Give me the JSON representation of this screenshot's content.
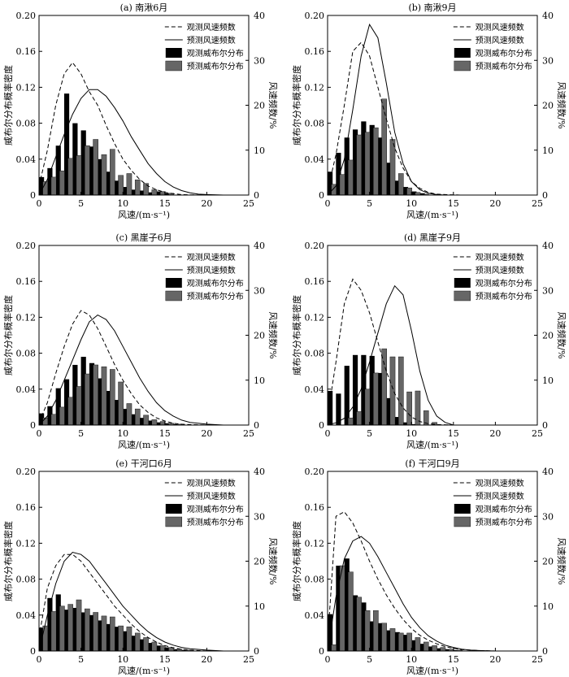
{
  "figure": {
    "left_axis_label": "威布尔分布概率密度",
    "right_axis_label": "风速频数/%",
    "x_axis_label": "风速/(m·s⁻¹)",
    "legend_labels": [
      "观测风速频数",
      "预测风速频数",
      "观测威布尔分布",
      "预测威布尔分布"
    ],
    "colors": {
      "observed_bar": "#000000",
      "predicted_bar": "#666666",
      "line": "#000000"
    }
  },
  "chart_data": [
    {
      "type": "bar",
      "title": "(a) 南湫6月",
      "xlim": [
        0,
        25
      ],
      "ylim": [
        0,
        0.2
      ],
      "y2lim": [
        0,
        40
      ],
      "x_ticks": [
        0,
        5,
        10,
        15,
        20,
        25
      ],
      "y_ticks": [
        0,
        0.04,
        0.08,
        0.12,
        0.16,
        0.2
      ],
      "y2_ticks": [
        0,
        10,
        20,
        30,
        40
      ],
      "legend": "top-right",
      "bars_x": [
        0,
        1,
        2,
        3,
        4,
        5,
        6,
        7,
        8,
        9,
        10,
        11,
        12,
        13,
        14,
        15
      ],
      "observed_bars": [
        0.02,
        0.03,
        0.055,
        0.113,
        0.08,
        0.072,
        0.054,
        0.04,
        0.026,
        0.016,
        0.009,
        0.006,
        0.005,
        0.003,
        0.004,
        0.002
      ],
      "predicted_bars": [
        0.015,
        0.02,
        0.027,
        0.041,
        0.044,
        0.055,
        0.062,
        0.045,
        0.051,
        0.022,
        0.024,
        0.017,
        0.013,
        0.006,
        0.004,
        0.002
      ],
      "observed_freq": {
        "x": [
          0,
          1,
          2,
          3,
          4,
          5,
          6,
          7,
          8,
          9,
          10,
          11,
          12,
          13,
          14,
          15,
          16,
          17,
          18,
          20
        ],
        "y": [
          2,
          10,
          20,
          27,
          29.5,
          27,
          23,
          20,
          15.5,
          11.5,
          8,
          5.5,
          3.5,
          2,
          1.2,
          0.6,
          0.3,
          0.1,
          0.05,
          0
        ]
      },
      "predicted_freq": {
        "x": [
          0,
          1,
          2,
          3,
          4,
          5,
          6,
          7,
          8,
          9,
          10,
          11,
          12,
          13,
          14,
          15,
          16,
          17,
          18,
          19,
          20,
          22
        ],
        "y": [
          0,
          3.5,
          8.5,
          13.5,
          18,
          21.5,
          23.5,
          23.5,
          22,
          19.5,
          16.5,
          13,
          10,
          7,
          4.8,
          3,
          1.8,
          1,
          0.5,
          0.2,
          0.1,
          0
        ]
      }
    },
    {
      "type": "bar",
      "title": "(b) 南湫9月",
      "xlim": [
        0,
        25
      ],
      "ylim": [
        0,
        0.2
      ],
      "y2lim": [
        0,
        40
      ],
      "x_ticks": [
        0,
        5,
        10,
        15,
        20,
        25
      ],
      "y_ticks": [
        0,
        0.04,
        0.08,
        0.12,
        0.16,
        0.2
      ],
      "y2_ticks": [
        0,
        10,
        20,
        30,
        40
      ],
      "legend": "top-right",
      "bars_x": [
        0,
        1,
        2,
        3,
        4,
        5,
        6,
        7,
        8,
        9,
        10,
        11
      ],
      "observed_bars": [
        0.026,
        0.047,
        0.064,
        0.073,
        0.082,
        0.078,
        0.064,
        0.036,
        0.016,
        0.009,
        0.004,
        0.002
      ],
      "predicted_bars": [
        0.012,
        0.023,
        0.039,
        0.067,
        0.07,
        0.075,
        0.107,
        0.062,
        0.024,
        0.008,
        0.003,
        0.001
      ],
      "observed_freq": {
        "x": [
          0,
          1,
          2,
          3,
          4,
          5,
          6,
          7,
          8,
          9,
          10,
          11,
          12,
          13,
          14,
          16
        ],
        "y": [
          1,
          9,
          20,
          32,
          34,
          31,
          24,
          17,
          10.5,
          6,
          3,
          1.5,
          0.6,
          0.2,
          0.1,
          0
        ]
      },
      "predicted_freq": {
        "x": [
          0,
          1,
          2,
          3,
          4,
          5,
          6,
          7,
          8,
          9,
          10,
          11,
          12,
          13,
          14
        ],
        "y": [
          0,
          2,
          8,
          19,
          31,
          38,
          35,
          25,
          14,
          7,
          3,
          1.2,
          0.4,
          0.1,
          0
        ]
      }
    },
    {
      "type": "bar",
      "title": "(c) 黑崖子6月",
      "xlim": [
        0,
        25
      ],
      "ylim": [
        0,
        0.2
      ],
      "y2lim": [
        0,
        40
      ],
      "x_ticks": [
        0,
        5,
        10,
        15,
        20,
        25
      ],
      "y_ticks": [
        0,
        0.04,
        0.08,
        0.12,
        0.16,
        0.2
      ],
      "y2_ticks": [
        0,
        10,
        20,
        30,
        40
      ],
      "legend": "top-right",
      "bars_x": [
        0,
        1,
        2,
        3,
        4,
        5,
        6,
        7,
        8,
        9,
        10,
        11,
        12,
        13,
        14,
        15,
        16
      ],
      "observed_bars": [
        0.013,
        0.021,
        0.041,
        0.051,
        0.067,
        0.076,
        0.069,
        0.052,
        0.038,
        0.028,
        0.018,
        0.012,
        0.008,
        0.005,
        0.003,
        0.002,
        0.001
      ],
      "predicted_bars": [
        0.008,
        0.012,
        0.02,
        0.031,
        0.043,
        0.057,
        0.067,
        0.065,
        0.062,
        0.048,
        0.024,
        0.018,
        0.011,
        0.006,
        0.004,
        0.002,
        0.001
      ],
      "observed_freq": {
        "x": [
          0,
          1,
          2,
          3,
          4,
          5,
          6,
          7,
          8,
          9,
          10,
          11,
          12,
          13,
          14,
          15,
          16,
          17,
          18,
          20
        ],
        "y": [
          0.5,
          5,
          11.5,
          17.5,
          22.5,
          25.5,
          24.5,
          21.5,
          17.5,
          13.5,
          10,
          7,
          4.5,
          2.8,
          1.6,
          0.9,
          0.4,
          0.2,
          0.1,
          0
        ]
      },
      "predicted_freq": {
        "x": [
          0,
          1,
          2,
          3,
          4,
          5,
          6,
          7,
          8,
          9,
          10,
          11,
          12,
          13,
          14,
          15,
          16,
          17,
          18,
          20,
          22
        ],
        "y": [
          0,
          2,
          5.5,
          10,
          14.5,
          19,
          23,
          24.5,
          23.5,
          21,
          17.5,
          14,
          10.5,
          7.5,
          5,
          3.2,
          2,
          1.1,
          0.6,
          0.2,
          0
        ]
      }
    },
    {
      "type": "bar",
      "title": "(d) 黑崖子9月",
      "xlim": [
        0,
        25
      ],
      "ylim": [
        0,
        0.2
      ],
      "y2lim": [
        0,
        40
      ],
      "x_ticks": [
        0,
        5,
        10,
        15,
        20,
        25
      ],
      "y_ticks": [
        0,
        0.04,
        0.08,
        0.12,
        0.16,
        0.2
      ],
      "y2_ticks": [
        0,
        10,
        20,
        30,
        40
      ],
      "legend": "top-right",
      "bars_x": [
        0,
        1,
        2,
        3,
        4,
        5,
        6,
        7,
        8,
        9,
        10,
        11,
        12
      ],
      "observed_bars": [
        0.038,
        0.035,
        0.066,
        0.078,
        0.078,
        0.077,
        0.058,
        0.03,
        0.009,
        0.003,
        0.001,
        0.0,
        0.0
      ],
      "predicted_bars": [
        0.0,
        0.0,
        0.008,
        0.015,
        0.04,
        0.058,
        0.085,
        0.076,
        0.076,
        0.037,
        0.038,
        0.016,
        0.003
      ],
      "observed_freq": {
        "x": [
          0,
          1,
          2,
          3,
          4,
          5,
          6,
          7,
          8,
          9,
          10,
          11,
          12,
          13,
          15
        ],
        "y": [
          2,
          14,
          27,
          32.5,
          30,
          25,
          18.5,
          12,
          7,
          3.8,
          1.8,
          0.8,
          0.3,
          0.1,
          0
        ]
      },
      "predicted_freq": {
        "x": [
          0,
          1,
          2,
          3,
          4,
          5,
          6,
          7,
          8,
          9,
          10,
          11,
          12,
          13,
          14,
          15
        ],
        "y": [
          0,
          0.5,
          1.5,
          4,
          8,
          14,
          20.5,
          27,
          31,
          29,
          21,
          12,
          5.5,
          2,
          0.6,
          0
        ]
      }
    },
    {
      "type": "bar",
      "title": "(e) 干河口6月",
      "xlim": [
        0,
        25
      ],
      "ylim": [
        0,
        0.2
      ],
      "y2lim": [
        0,
        40
      ],
      "x_ticks": [
        0,
        5,
        10,
        15,
        20,
        25
      ],
      "y_ticks": [
        0,
        0.04,
        0.08,
        0.12,
        0.16,
        0.2
      ],
      "y2_ticks": [
        0,
        10,
        20,
        30,
        40
      ],
      "legend": "top-right",
      "bars_x": [
        0,
        1,
        2,
        3,
        4,
        5,
        6,
        7,
        8,
        9,
        10,
        11,
        12,
        13,
        14,
        15,
        16,
        17
      ],
      "observed_bars": [
        0.026,
        0.059,
        0.063,
        0.046,
        0.048,
        0.043,
        0.04,
        0.034,
        0.03,
        0.027,
        0.022,
        0.017,
        0.013,
        0.009,
        0.006,
        0.004,
        0.002,
        0.001
      ],
      "predicted_bars": [
        0.028,
        0.044,
        0.05,
        0.052,
        0.057,
        0.047,
        0.043,
        0.039,
        0.038,
        0.028,
        0.027,
        0.02,
        0.015,
        0.01,
        0.006,
        0.004,
        0.002,
        0.001
      ],
      "observed_freq": {
        "x": [
          0,
          1,
          2,
          3,
          4,
          5,
          6,
          7,
          8,
          9,
          10,
          11,
          12,
          13,
          14,
          15,
          16,
          17,
          18,
          20
        ],
        "y": [
          3,
          14,
          19,
          21.5,
          21.5,
          20,
          17.5,
          15,
          12.5,
          10,
          8,
          6,
          4.3,
          3,
          2,
          1.2,
          0.7,
          0.4,
          0.2,
          0
        ]
      },
      "predicted_freq": {
        "x": [
          0,
          1,
          2,
          3,
          4,
          5,
          6,
          7,
          8,
          9,
          10,
          11,
          12,
          13,
          14,
          15,
          16,
          17,
          18,
          20,
          22
        ],
        "y": [
          0,
          8,
          15,
          20,
          22,
          21.5,
          20,
          17.5,
          15,
          12.5,
          10,
          8,
          6,
          4.3,
          3,
          2,
          1.3,
          0.8,
          0.5,
          0.2,
          0
        ]
      }
    },
    {
      "type": "bar",
      "title": "(f) 干河口9月",
      "xlim": [
        0,
        25
      ],
      "ylim": [
        0,
        0.2
      ],
      "y2lim": [
        0,
        40
      ],
      "x_ticks": [
        0,
        5,
        10,
        15,
        20,
        25
      ],
      "y_ticks": [
        0,
        0.04,
        0.08,
        0.12,
        0.16,
        0.2
      ],
      "y2_ticks": [
        0,
        10,
        20,
        30,
        40
      ],
      "legend": "top-right",
      "bars_x": [
        0,
        1,
        2,
        3,
        4,
        5,
        6,
        7,
        8,
        9,
        10,
        11,
        12,
        13,
        14,
        15
      ],
      "observed_bars": [
        0.041,
        0.095,
        0.103,
        0.062,
        0.054,
        0.033,
        0.031,
        0.023,
        0.021,
        0.018,
        0.012,
        0.008,
        0.005,
        0.003,
        0.002,
        0.001
      ],
      "predicted_bars": [
        0.007,
        0.095,
        0.088,
        0.06,
        0.045,
        0.045,
        0.031,
        0.025,
        0.02,
        0.02,
        0.015,
        0.01,
        0.006,
        0.004,
        0.002,
        0.001
      ],
      "observed_freq": {
        "x": [
          0,
          1,
          2,
          3,
          4,
          5,
          6,
          7,
          8,
          9,
          10,
          11,
          12,
          13,
          14,
          15,
          16,
          18,
          20
        ],
        "y": [
          2,
          30,
          31,
          28.5,
          24.5,
          20,
          16,
          12.5,
          9.5,
          7,
          5,
          3.5,
          2.4,
          1.6,
          1,
          0.6,
          0.3,
          0.1,
          0
        ]
      },
      "predicted_freq": {
        "x": [
          0,
          1,
          2,
          3,
          4,
          5,
          6,
          7,
          8,
          9,
          10,
          11,
          12,
          13,
          14,
          15,
          16,
          17,
          18,
          20
        ],
        "y": [
          0,
          12,
          20.5,
          24.5,
          25.5,
          24,
          21,
          17.5,
          14,
          10.5,
          7.5,
          5.2,
          3.4,
          2.2,
          1.3,
          0.8,
          0.4,
          0.2,
          0.1,
          0
        ]
      }
    }
  ]
}
